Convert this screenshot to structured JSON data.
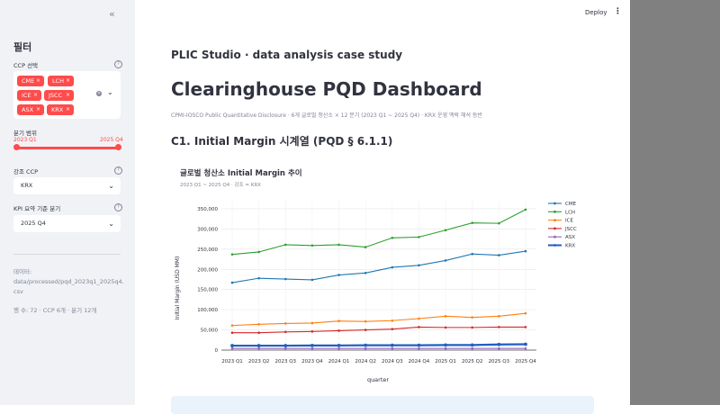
{
  "sidebar": {
    "collapse_icon": "«",
    "title": "필터",
    "ccp_label": "CCP 선택",
    "ccp_chips": [
      "CME",
      "LCH",
      "ICE",
      "JSCC",
      "ASX",
      "KRX"
    ],
    "remove_glyph": "×",
    "clear_glyph": "×",
    "chevron": "⌄",
    "help_glyph": "?",
    "quarter_range_label": "분기 범위",
    "range_start": "2023 Q1",
    "range_end": "2025 Q4",
    "highlight_label": "강조 CCP",
    "highlight_value": "KRX",
    "kpi_label": "KPI 요약 기준 분기",
    "kpi_value": "2025 Q4",
    "data_label": "데이터:",
    "data_path": "data/processed/pqd_2023q1_2025q4.csv",
    "rows_info": "행 수: 72 · CCP 6개 · 분기 12개"
  },
  "topbar": {
    "deploy_label": "Deploy",
    "menu_icon": "⋮"
  },
  "main": {
    "studio_title": "PLIC Studio · data analysis case study",
    "title": "Clearinghouse PQD Dashboard",
    "subtitle": "CPMI-IOSCO Public Quantitative Disclosure · 6개 글로벌 청산소 × 12 분기 (2023 Q1 ~ 2025 Q4) · KRX 운영 맥락 해석 동반",
    "section_title": "C1. Initial Margin 시계열 (PQD § 6.1.1)"
  },
  "chart_data": {
    "type": "line",
    "title": "글로벌 청산소 Initial Margin 추이",
    "subtitle": "2023 Q1 ~ 2025 Q4 · 강조 = KRX",
    "xlabel": "quarter",
    "ylabel": "Initial Margin (USD MM)",
    "ylim": [
      0,
      370000
    ],
    "yticks": [
      0,
      50000,
      100000,
      150000,
      200000,
      250000,
      300000,
      350000
    ],
    "ytick_labels": [
      "0",
      "50,000",
      "100,000",
      "150,000",
      "200,000",
      "250,000",
      "300,000",
      "350,000"
    ],
    "categories": [
      "2023 Q1",
      "2023 Q2",
      "2023 Q3",
      "2023 Q4",
      "2024 Q1",
      "2024 Q2",
      "2024 Q3",
      "2024 Q4",
      "2025 Q1",
      "2025 Q2",
      "2025 Q3",
      "2025 Q4"
    ],
    "grid": true,
    "legend_position": "right",
    "series": [
      {
        "name": "CME",
        "color": "#1f77b4",
        "values": [
          167000,
          178000,
          176000,
          174000,
          186000,
          191000,
          205000,
          210000,
          222000,
          238000,
          235000,
          245000
        ]
      },
      {
        "name": "LCH",
        "color": "#2ca02c",
        "values": [
          237000,
          243000,
          261000,
          259000,
          261000,
          255000,
          278000,
          280000,
          297000,
          315000,
          314000,
          348000
        ]
      },
      {
        "name": "ICE",
        "color": "#ff7f0e",
        "values": [
          61000,
          64000,
          66000,
          67000,
          72000,
          71000,
          73000,
          78000,
          84000,
          81000,
          84000,
          91000
        ]
      },
      {
        "name": "JSCC",
        "color": "#d62728",
        "values": [
          43000,
          43000,
          45000,
          46000,
          48000,
          50000,
          52000,
          57000,
          56000,
          56000,
          57000,
          57000
        ]
      },
      {
        "name": "ASX",
        "color": "#9467bd",
        "values": [
          4000,
          4000,
          4000,
          4000,
          4000,
          4000,
          4000,
          4000,
          4000,
          4000,
          4000,
          4000
        ]
      },
      {
        "name": "KRX",
        "color": "#1f5fbf",
        "highlight": true,
        "values": [
          11000,
          11000,
          11000,
          11500,
          11500,
          12000,
          12000,
          12000,
          12500,
          12500,
          14000,
          14500
        ]
      }
    ]
  }
}
